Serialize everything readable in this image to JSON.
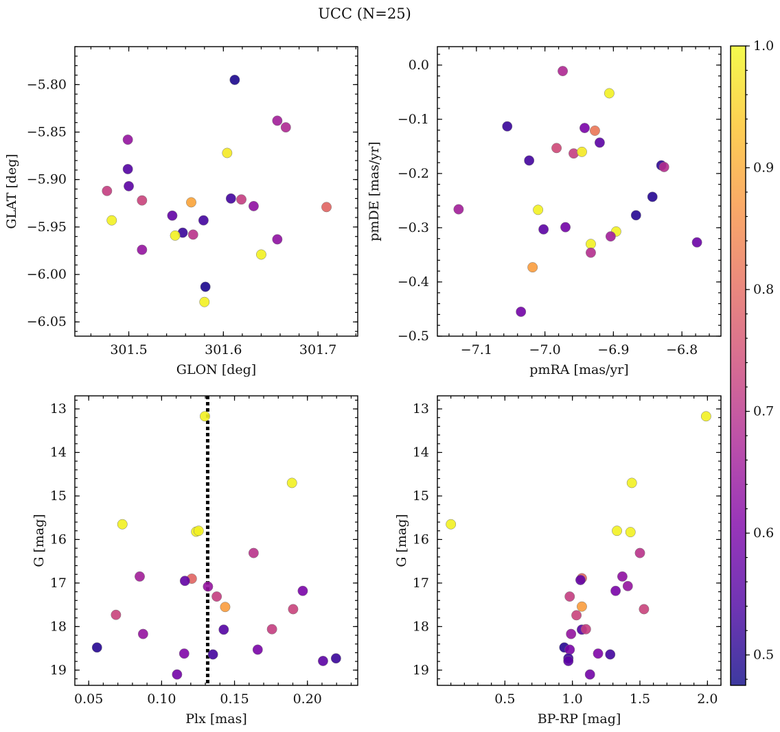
{
  "title": "UCC (N=25)",
  "colorbar": {
    "ticks": [
      0.5,
      0.6,
      0.7,
      0.8,
      0.9,
      1.0
    ],
    "tick_labels": [
      "0.5",
      "0.6",
      "0.7",
      "0.8",
      "0.9",
      "1.0"
    ],
    "range": [
      0.475,
      1.0
    ],
    "colormap": "plasma"
  },
  "chart_data": [
    {
      "type": "scatter",
      "xlabel": "GLON [deg]",
      "ylabel": "GLAT [deg]",
      "xlim": [
        301.443,
        301.742
      ],
      "ylim": [
        -6.065,
        -5.76
      ],
      "xticks": [
        301.5,
        301.6,
        301.7
      ],
      "xtick_labels": [
        "301.5",
        "301.6",
        "301.7"
      ],
      "yticks": [
        -5.8,
        -5.85,
        -5.9,
        -5.95,
        -6.0,
        -6.05
      ],
      "ytick_labels": [
        "−5.80",
        "−5.85",
        "−5.90",
        "−5.95",
        "−6.00",
        "−6.05"
      ],
      "points": [
        {
          "x": 301.612,
          "y": -5.795,
          "c": 0.49
        },
        {
          "x": 301.657,
          "y": -5.838,
          "c": 0.66
        },
        {
          "x": 301.666,
          "y": -5.845,
          "c": 0.68
        },
        {
          "x": 301.499,
          "y": -5.858,
          "c": 0.64
        },
        {
          "x": 301.604,
          "y": -5.872,
          "c": 0.98
        },
        {
          "x": 301.499,
          "y": -5.889,
          "c": 0.55
        },
        {
          "x": 301.5,
          "y": -5.907,
          "c": 0.56
        },
        {
          "x": 301.477,
          "y": -5.912,
          "c": 0.72
        },
        {
          "x": 301.514,
          "y": -5.922,
          "c": 0.73
        },
        {
          "x": 301.608,
          "y": -5.92,
          "c": 0.53
        },
        {
          "x": 301.619,
          "y": -5.921,
          "c": 0.72
        },
        {
          "x": 301.566,
          "y": -5.924,
          "c": 0.89
        },
        {
          "x": 301.709,
          "y": -5.929,
          "c": 0.79
        },
        {
          "x": 301.632,
          "y": -5.928,
          "c": 0.63
        },
        {
          "x": 301.482,
          "y": -5.943,
          "c": 0.99
        },
        {
          "x": 301.546,
          "y": -5.938,
          "c": 0.57
        },
        {
          "x": 301.579,
          "y": -5.943,
          "c": 0.53
        },
        {
          "x": 301.557,
          "y": -5.956,
          "c": 0.52
        },
        {
          "x": 301.549,
          "y": -5.959,
          "c": 0.99
        },
        {
          "x": 301.568,
          "y": -5.958,
          "c": 0.7
        },
        {
          "x": 301.657,
          "y": -5.963,
          "c": 0.63
        },
        {
          "x": 301.514,
          "y": -5.974,
          "c": 0.64
        },
        {
          "x": 301.64,
          "y": -5.979,
          "c": 0.99
        },
        {
          "x": 301.581,
          "y": -6.013,
          "c": 0.49
        },
        {
          "x": 301.58,
          "y": -6.029,
          "c": 0.99
        }
      ]
    },
    {
      "type": "scatter",
      "xlabel": "pmRA [mas/yr]",
      "ylabel": "pmDE [mas/yr]",
      "xlim": [
        -7.157,
        -6.743
      ],
      "ylim": [
        -0.5,
        0.034
      ],
      "xticks": [
        -7.1,
        -7.0,
        -6.9,
        -6.8
      ],
      "xtick_labels": [
        "−7.1",
        "−7.0",
        "−6.9",
        "−6.8"
      ],
      "yticks": [
        0.0,
        -0.1,
        -0.2,
        -0.3,
        -0.4,
        -0.5
      ],
      "ytick_labels": [
        "0.0",
        "−0.1",
        "−0.2",
        "−0.3",
        "−0.4",
        "−0.5"
      ],
      "points": [
        {
          "x": -6.974,
          "y": -0.011,
          "c": 0.68
        },
        {
          "x": -6.906,
          "y": -0.052,
          "c": 0.99
        },
        {
          "x": -7.055,
          "y": -0.113,
          "c": 0.52
        },
        {
          "x": -6.942,
          "y": -0.116,
          "c": 0.6
        },
        {
          "x": -6.927,
          "y": -0.121,
          "c": 0.82
        },
        {
          "x": -6.983,
          "y": -0.153,
          "c": 0.74
        },
        {
          "x": -6.958,
          "y": -0.163,
          "c": 0.72
        },
        {
          "x": -6.946,
          "y": -0.16,
          "c": 0.98
        },
        {
          "x": -6.92,
          "y": -0.143,
          "c": 0.56
        },
        {
          "x": -7.023,
          "y": -0.176,
          "c": 0.53
        },
        {
          "x": -6.83,
          "y": -0.185,
          "c": 0.51
        },
        {
          "x": -6.826,
          "y": -0.188,
          "c": 0.69
        },
        {
          "x": -6.843,
          "y": -0.243,
          "c": 0.5
        },
        {
          "x": -7.126,
          "y": -0.266,
          "c": 0.66
        },
        {
          "x": -7.01,
          "y": -0.267,
          "c": 0.99
        },
        {
          "x": -6.867,
          "y": -0.277,
          "c": 0.5
        },
        {
          "x": -6.97,
          "y": -0.299,
          "c": 0.59
        },
        {
          "x": -7.002,
          "y": -0.303,
          "c": 0.56
        },
        {
          "x": -6.778,
          "y": -0.327,
          "c": 0.58
        },
        {
          "x": -6.896,
          "y": -0.307,
          "c": 0.99
        },
        {
          "x": -6.904,
          "y": -0.316,
          "c": 0.66
        },
        {
          "x": -6.933,
          "y": -0.33,
          "c": 0.99
        },
        {
          "x": -6.933,
          "y": -0.346,
          "c": 0.69
        },
        {
          "x": -7.018,
          "y": -0.373,
          "c": 0.88
        },
        {
          "x": -7.035,
          "y": -0.455,
          "c": 0.59
        }
      ]
    },
    {
      "type": "scatter",
      "xlabel": "Plx [mas]",
      "ylabel": "G [mag]",
      "xlim": [
        0.0405,
        0.2345
      ],
      "ylim": [
        19.35,
        12.7
      ],
      "xticks": [
        0.05,
        0.1,
        0.15,
        0.2
      ],
      "xtick_labels": [
        "0.05",
        "0.10",
        "0.15",
        "0.20"
      ],
      "yticks": [
        13,
        14,
        15,
        16,
        17,
        18,
        19
      ],
      "ytick_labels": [
        "13",
        "14",
        "15",
        "16",
        "17",
        "18",
        "19"
      ],
      "vline": 0.1316,
      "points": [
        {
          "x": 0.1297,
          "y": 13.17,
          "c": 0.99
        },
        {
          "x": 0.1894,
          "y": 14.7,
          "c": 0.99
        },
        {
          "x": 0.0731,
          "y": 15.65,
          "c": 0.99
        },
        {
          "x": 0.1237,
          "y": 15.82,
          "c": 0.99
        },
        {
          "x": 0.1254,
          "y": 15.8,
          "c": 0.99
        },
        {
          "x": 0.1631,
          "y": 16.31,
          "c": 0.7
        },
        {
          "x": 0.085,
          "y": 16.85,
          "c": 0.66
        },
        {
          "x": 0.1207,
          "y": 16.9,
          "c": 0.79
        },
        {
          "x": 0.116,
          "y": 16.95,
          "c": 0.57
        },
        {
          "x": 0.1318,
          "y": 17.08,
          "c": 0.64
        },
        {
          "x": 0.1968,
          "y": 17.18,
          "c": 0.6
        },
        {
          "x": 0.1378,
          "y": 17.31,
          "c": 0.72
        },
        {
          "x": 0.1436,
          "y": 17.55,
          "c": 0.88
        },
        {
          "x": 0.1902,
          "y": 17.6,
          "c": 0.73
        },
        {
          "x": 0.0687,
          "y": 17.73,
          "c": 0.73
        },
        {
          "x": 0.1426,
          "y": 18.07,
          "c": 0.55
        },
        {
          "x": 0.1757,
          "y": 18.06,
          "c": 0.72
        },
        {
          "x": 0.0873,
          "y": 18.17,
          "c": 0.64
        },
        {
          "x": 0.0557,
          "y": 18.48,
          "c": 0.5
        },
        {
          "x": 0.1659,
          "y": 18.53,
          "c": 0.6
        },
        {
          "x": 0.1155,
          "y": 18.62,
          "c": 0.61
        },
        {
          "x": 0.1352,
          "y": 18.64,
          "c": 0.53
        },
        {
          "x": 0.2196,
          "y": 18.73,
          "c": 0.52
        },
        {
          "x": 0.2107,
          "y": 18.79,
          "c": 0.56
        },
        {
          "x": 0.1106,
          "y": 19.1,
          "c": 0.59
        }
      ]
    },
    {
      "type": "scatter",
      "xlabel": "BP-RP [mag]",
      "ylabel": "G [mag]",
      "xlim": [
        0.0,
        2.1
      ],
      "ylim": [
        19.35,
        12.7
      ],
      "xticks": [
        0.5,
        1.0,
        1.5,
        2.0
      ],
      "xtick_labels": [
        "0.5",
        "1.0",
        "1.5",
        "2.0"
      ],
      "yticks": [
        13,
        14,
        15,
        16,
        17,
        18,
        19
      ],
      "ytick_labels": [
        "13",
        "14",
        "15",
        "16",
        "17",
        "18",
        "19"
      ],
      "points": [
        {
          "x": 1.99,
          "y": 13.17,
          "c": 0.99
        },
        {
          "x": 1.44,
          "y": 14.7,
          "c": 0.99
        },
        {
          "x": 0.1,
          "y": 15.65,
          "c": 0.99
        },
        {
          "x": 1.33,
          "y": 15.8,
          "c": 0.99
        },
        {
          "x": 1.43,
          "y": 15.83,
          "c": 0.99
        },
        {
          "x": 1.5,
          "y": 16.31,
          "c": 0.7
        },
        {
          "x": 1.37,
          "y": 16.85,
          "c": 0.63
        },
        {
          "x": 1.07,
          "y": 16.89,
          "c": 0.79
        },
        {
          "x": 1.06,
          "y": 16.93,
          "c": 0.57
        },
        {
          "x": 1.41,
          "y": 17.07,
          "c": 0.64
        },
        {
          "x": 1.32,
          "y": 17.18,
          "c": 0.6
        },
        {
          "x": 0.98,
          "y": 17.31,
          "c": 0.72
        },
        {
          "x": 1.07,
          "y": 17.54,
          "c": 0.88
        },
        {
          "x": 1.53,
          "y": 17.6,
          "c": 0.73
        },
        {
          "x": 1.03,
          "y": 17.74,
          "c": 0.73
        },
        {
          "x": 1.07,
          "y": 18.07,
          "c": 0.55
        },
        {
          "x": 1.1,
          "y": 18.06,
          "c": 0.72
        },
        {
          "x": 0.99,
          "y": 18.17,
          "c": 0.64
        },
        {
          "x": 0.94,
          "y": 18.48,
          "c": 0.5
        },
        {
          "x": 0.98,
          "y": 18.53,
          "c": 0.6
        },
        {
          "x": 1.19,
          "y": 18.62,
          "c": 0.61
        },
        {
          "x": 1.28,
          "y": 18.64,
          "c": 0.53
        },
        {
          "x": 0.97,
          "y": 18.73,
          "c": 0.52
        },
        {
          "x": 0.97,
          "y": 18.79,
          "c": 0.56
        },
        {
          "x": 1.13,
          "y": 19.1,
          "c": 0.59
        }
      ]
    }
  ]
}
